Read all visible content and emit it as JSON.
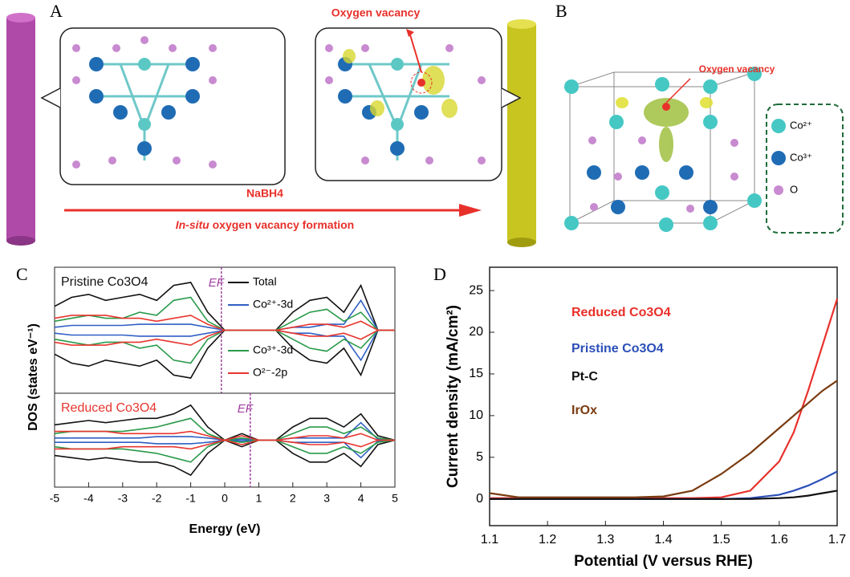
{
  "panels": {
    "a": {
      "label": "A",
      "vacancy_label": "Oxygen vacancy",
      "reagent": "NaBH4",
      "process_prefix": "In-situ",
      "process_rest": " oxygen vacancy formation"
    },
    "b": {
      "label": "B",
      "vacancy_label": "Oxygen vacancy",
      "legend": [
        "Co²⁺",
        "Co³⁺",
        "O"
      ]
    },
    "c": {
      "label": "C"
    },
    "d": {
      "label": "D"
    }
  },
  "chart_data": [
    {
      "type": "dos",
      "xlabel": "Energy (eV)",
      "ylabel": "DOS (states eV⁻¹)",
      "xlim": [
        -5,
        5
      ],
      "xticks": [
        -5,
        -4,
        -3,
        -2,
        -1,
        0,
        1,
        2,
        3,
        4,
        5
      ],
      "x": [
        -5,
        -4.5,
        -4,
        -3.5,
        -3,
        -2.5,
        -2,
        -1.5,
        -1,
        -0.5,
        0,
        0.5,
        1,
        1.5,
        2,
        2.5,
        3,
        3.5,
        4,
        4.5,
        5
      ],
      "spin_down_mirrored": true,
      "legend": [
        {
          "name": "Total",
          "color": "#111111"
        },
        {
          "name": "Co²⁺-3d",
          "color": "#2f5fc4"
        },
        {
          "name": "Co³⁺-3d",
          "color": "#2a9a4a"
        },
        {
          "name": "O²⁻-2p",
          "color": "#e8352e"
        }
      ],
      "subplots": [
        {
          "title": "Pristine Co3O4",
          "title_color": "#111111",
          "fermi_level": -0.1,
          "fermi_label": "EF",
          "ylim": [
            0,
            1
          ],
          "series": [
            {
              "values": [
                0.4,
                0.55,
                0.6,
                0.5,
                0.55,
                0.6,
                0.5,
                0.75,
                0.8,
                0.3,
                0,
                0,
                0,
                0,
                0.3,
                0.5,
                0.55,
                0.3,
                0.75,
                0,
                0
              ]
            },
            {
              "values": [
                0.05,
                0.08,
                0.08,
                0.08,
                0.08,
                0.1,
                0.1,
                0.1,
                0.1,
                0.05,
                0,
                0,
                0,
                0,
                0.05,
                0.05,
                0.1,
                0.1,
                0.5,
                0,
                0
              ]
            },
            {
              "values": [
                0.15,
                0.2,
                0.25,
                0.2,
                0.2,
                0.3,
                0.25,
                0.5,
                0.55,
                0.15,
                0,
                0,
                0,
                0,
                0.15,
                0.3,
                0.35,
                0.15,
                0.3,
                0,
                0
              ]
            },
            {
              "values": [
                0.2,
                0.25,
                0.25,
                0.25,
                0.2,
                0.2,
                0.15,
                0.2,
                0.25,
                0.1,
                0,
                0,
                0,
                0,
                0.05,
                0.1,
                0.1,
                0.05,
                0.15,
                0,
                0
              ]
            }
          ]
        },
        {
          "title": "Reduced Co3O4",
          "title_color": "#e8352e",
          "fermi_level": 0.75,
          "fermi_label": "EF",
          "ylim": [
            0,
            1
          ],
          "series": [
            {
              "values": [
                0.35,
                0.4,
                0.45,
                0.4,
                0.45,
                0.5,
                0.5,
                0.6,
                0.8,
                0.3,
                0,
                0.15,
                0,
                0,
                0.3,
                0.5,
                0.5,
                0.3,
                0.6,
                0.1,
                0
              ]
            },
            {
              "values": [
                0.05,
                0.05,
                0.05,
                0.05,
                0.05,
                0.05,
                0.08,
                0.08,
                0.08,
                0.05,
                0,
                0.02,
                0,
                0,
                0.05,
                0.05,
                0.05,
                0.05,
                0.4,
                0.02,
                0
              ]
            },
            {
              "values": [
                0.15,
                0.2,
                0.2,
                0.2,
                0.2,
                0.25,
                0.3,
                0.4,
                0.5,
                0.15,
                0,
                0.05,
                0,
                0,
                0.15,
                0.3,
                0.3,
                0.15,
                0.3,
                0.05,
                0
              ]
            },
            {
              "values": [
                0.2,
                0.2,
                0.2,
                0.2,
                0.15,
                0.15,
                0.15,
                0.15,
                0.2,
                0.1,
                0,
                0.1,
                0,
                0,
                0.05,
                0.1,
                0.1,
                0.05,
                0.15,
                0,
                0
              ]
            }
          ]
        }
      ]
    },
    {
      "type": "line",
      "xlabel": "Potential (V versus RHE)",
      "ylabel": "Current density (mA/cm²)",
      "xlim": [
        1.1,
        1.7
      ],
      "xticks": [
        1.1,
        1.2,
        1.3,
        1.4,
        1.5,
        1.6,
        1.7
      ],
      "ylim": [
        -3.2,
        27.8
      ],
      "yticks": [
        0,
        5,
        10,
        15,
        20,
        25
      ],
      "x": [
        1.1,
        1.15,
        1.2,
        1.25,
        1.3,
        1.35,
        1.4,
        1.45,
        1.5,
        1.55,
        1.6,
        1.625,
        1.65,
        1.675,
        1.7
      ],
      "series": [
        {
          "name": "Reduced Co3O4",
          "color": "#e8302a",
          "values": [
            0.1,
            0.1,
            0.1,
            0.1,
            0.1,
            0.1,
            0.1,
            0.1,
            0.2,
            1.0,
            4.5,
            8,
            13,
            18.5,
            24
          ]
        },
        {
          "name": "Pristine Co3O4",
          "color": "#2b4fb8",
          "values": [
            0,
            0,
            0,
            0,
            0,
            0,
            0,
            0,
            0,
            0.1,
            0.5,
            1.0,
            1.6,
            2.4,
            3.3
          ]
        },
        {
          "name": "Pt-C",
          "color": "#111111",
          "values": [
            0,
            0,
            0,
            0,
            0,
            0,
            0,
            0,
            0,
            0,
            0.1,
            0.2,
            0.4,
            0.7,
            1.0
          ]
        },
        {
          "name": "IrOx",
          "color": "#7a3b10",
          "values": [
            0.7,
            0.2,
            0.2,
            0.2,
            0.2,
            0.2,
            0.3,
            1.0,
            3.0,
            5.5,
            8.5,
            10,
            11.5,
            13,
            14.2
          ]
        }
      ]
    }
  ]
}
